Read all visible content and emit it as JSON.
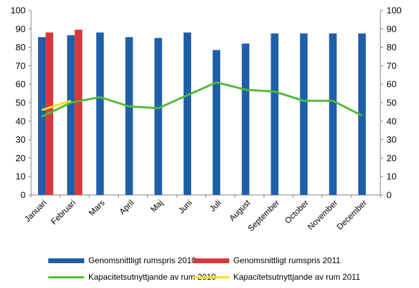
{
  "chart_data": {
    "type": "bar",
    "categories": [
      "Januari",
      "Februari",
      "Mars",
      "April",
      "Maj",
      "Juni",
      "Juli",
      "August",
      "September",
      "October",
      "November",
      "December"
    ],
    "series": [
      {
        "name": "Genomsnittligt rumspris 2010",
        "kind": "bar",
        "color": "#1f5fa8",
        "values": [
          85.5,
          86.5,
          88,
          85.5,
          85,
          88,
          78.5,
          82,
          87.5,
          87.5,
          87.5,
          87.5
        ]
      },
      {
        "name": "Genomsnittligt rumspris 2011",
        "kind": "bar",
        "color": "#d8383b",
        "values": [
          88,
          89.5,
          null,
          null,
          null,
          null,
          null,
          null,
          null,
          null,
          null,
          null
        ]
      },
      {
        "name": "Kapacitetsutnyttjande av rum 2010",
        "kind": "line",
        "color": "#4fba38",
        "values": [
          42.5,
          50,
          53,
          48,
          47,
          54,
          61,
          57,
          56,
          51,
          51,
          43
        ]
      },
      {
        "name": "Kapacitetsutnyttjande av rum 2011",
        "kind": "line",
        "color": "#f5e11a",
        "values": [
          46,
          51,
          null,
          null,
          null,
          null,
          null,
          null,
          null,
          null,
          null,
          null
        ]
      }
    ],
    "ylim": [
      0,
      100
    ],
    "yticks": [
      "0",
      "10",
      "20",
      "30",
      "40",
      "50",
      "60",
      "70",
      "80",
      "90",
      "100"
    ],
    "y2ticks": [
      "0",
      "10",
      "20",
      "30",
      "40",
      "50",
      "60",
      "70",
      "80",
      "90",
      "100"
    ],
    "grid": false,
    "legend_position": "bottom"
  }
}
